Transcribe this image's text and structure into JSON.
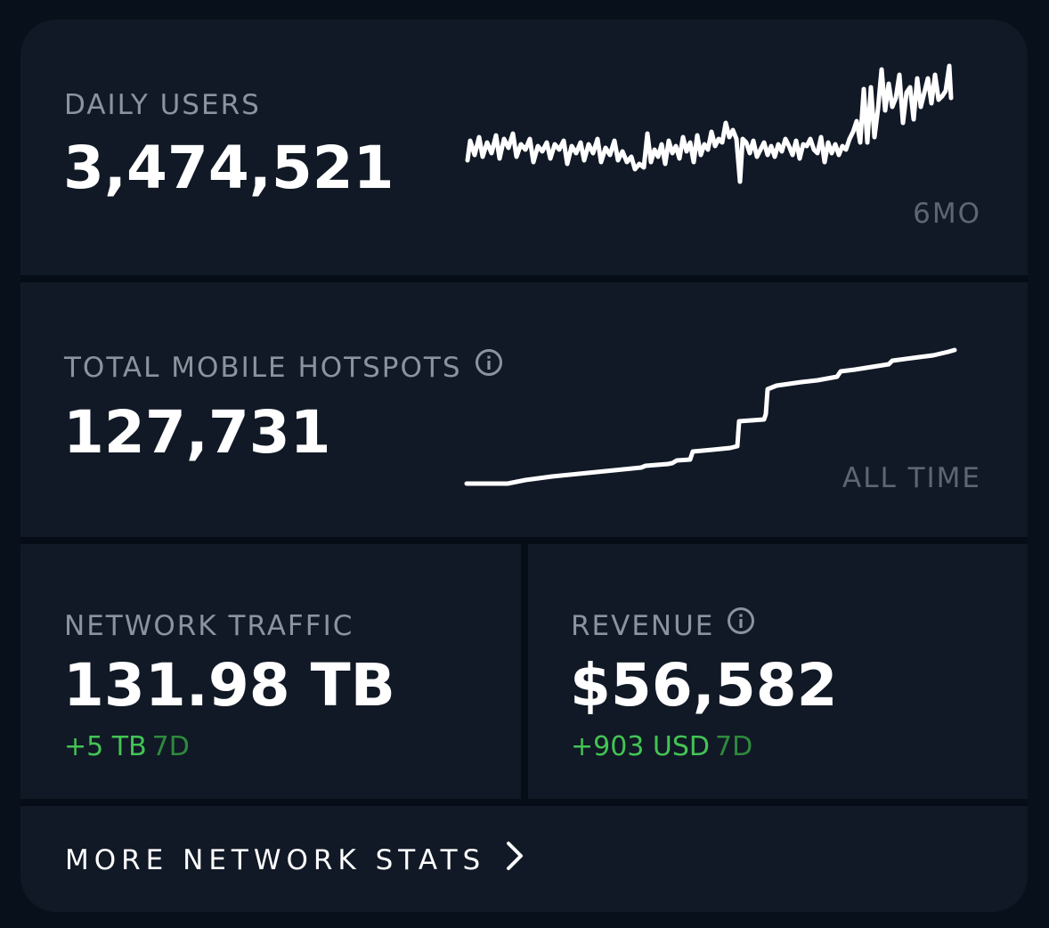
{
  "daily_users": {
    "label": "DAILY USERS",
    "value": "3,474,521",
    "period": "6MO"
  },
  "hotspots": {
    "label": "TOTAL MOBILE HOTSPOTS",
    "value": "127,731",
    "period": "ALL TIME",
    "icon": "info-icon"
  },
  "traffic": {
    "label": "NETWORK TRAFFIC",
    "value": "131.98 TB",
    "delta": "+5 TB",
    "delta_period": "7D"
  },
  "revenue": {
    "label": "REVENUE",
    "value": "$56,582",
    "delta": "+903 USD",
    "delta_period": "7D",
    "icon": "info-icon"
  },
  "footer": {
    "label": "MORE NETWORK STATS",
    "icon": "chevron-right-icon"
  },
  "colors": {
    "background": "#08101b",
    "panel": "#111926",
    "label": "#8c939f",
    "value": "#ffffff",
    "positive": "#43c454"
  }
}
